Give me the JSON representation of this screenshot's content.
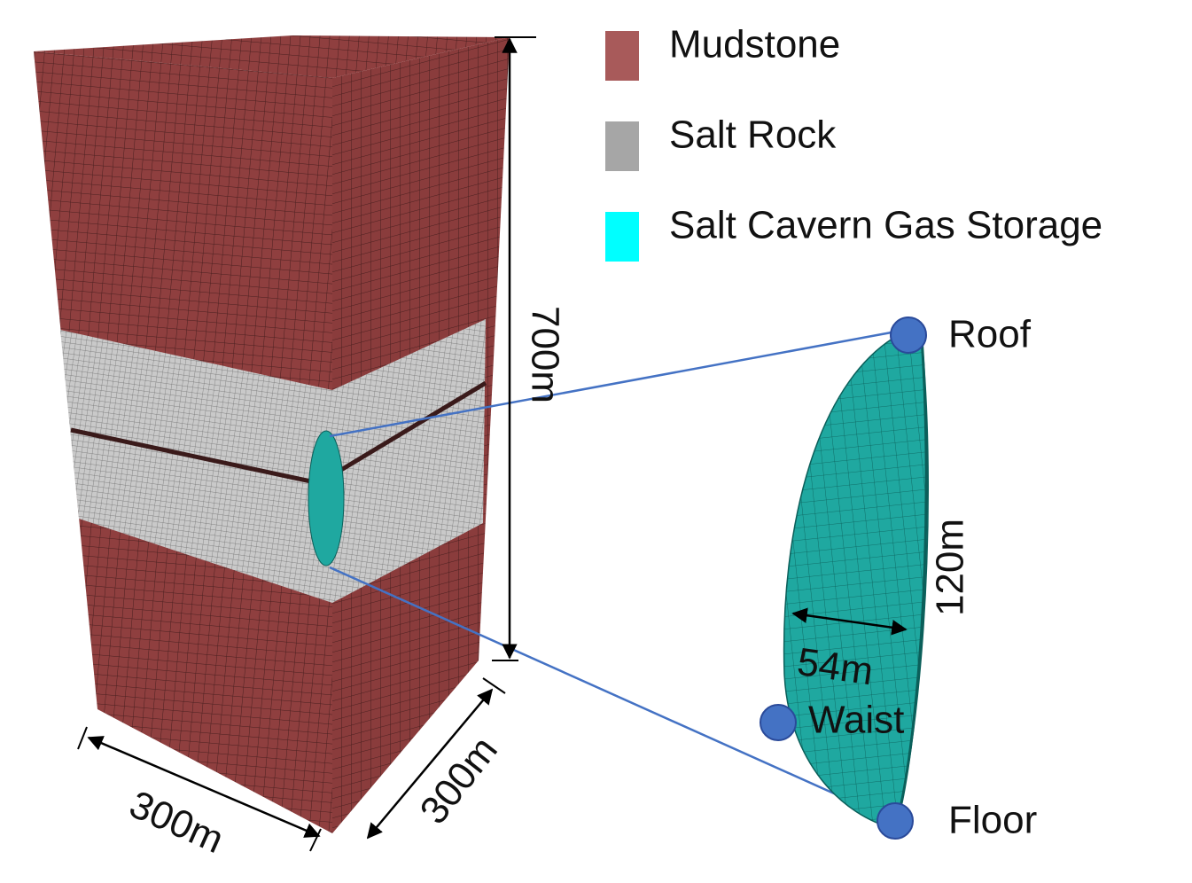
{
  "legend": [
    {
      "label": "Mudstone",
      "color": "#a85a5a"
    },
    {
      "label": "Salt Rock",
      "color": "#a6a6a6"
    },
    {
      "label": "Salt Cavern Gas Storage",
      "color": "#00ffff"
    }
  ],
  "dimensions": {
    "height": "700m",
    "width": "300m",
    "depth": "300m",
    "cavern_height": "120m",
    "cavern_width": "54m"
  },
  "points": {
    "roof": "Roof",
    "waist": "Waist",
    "floor": "Floor"
  }
}
